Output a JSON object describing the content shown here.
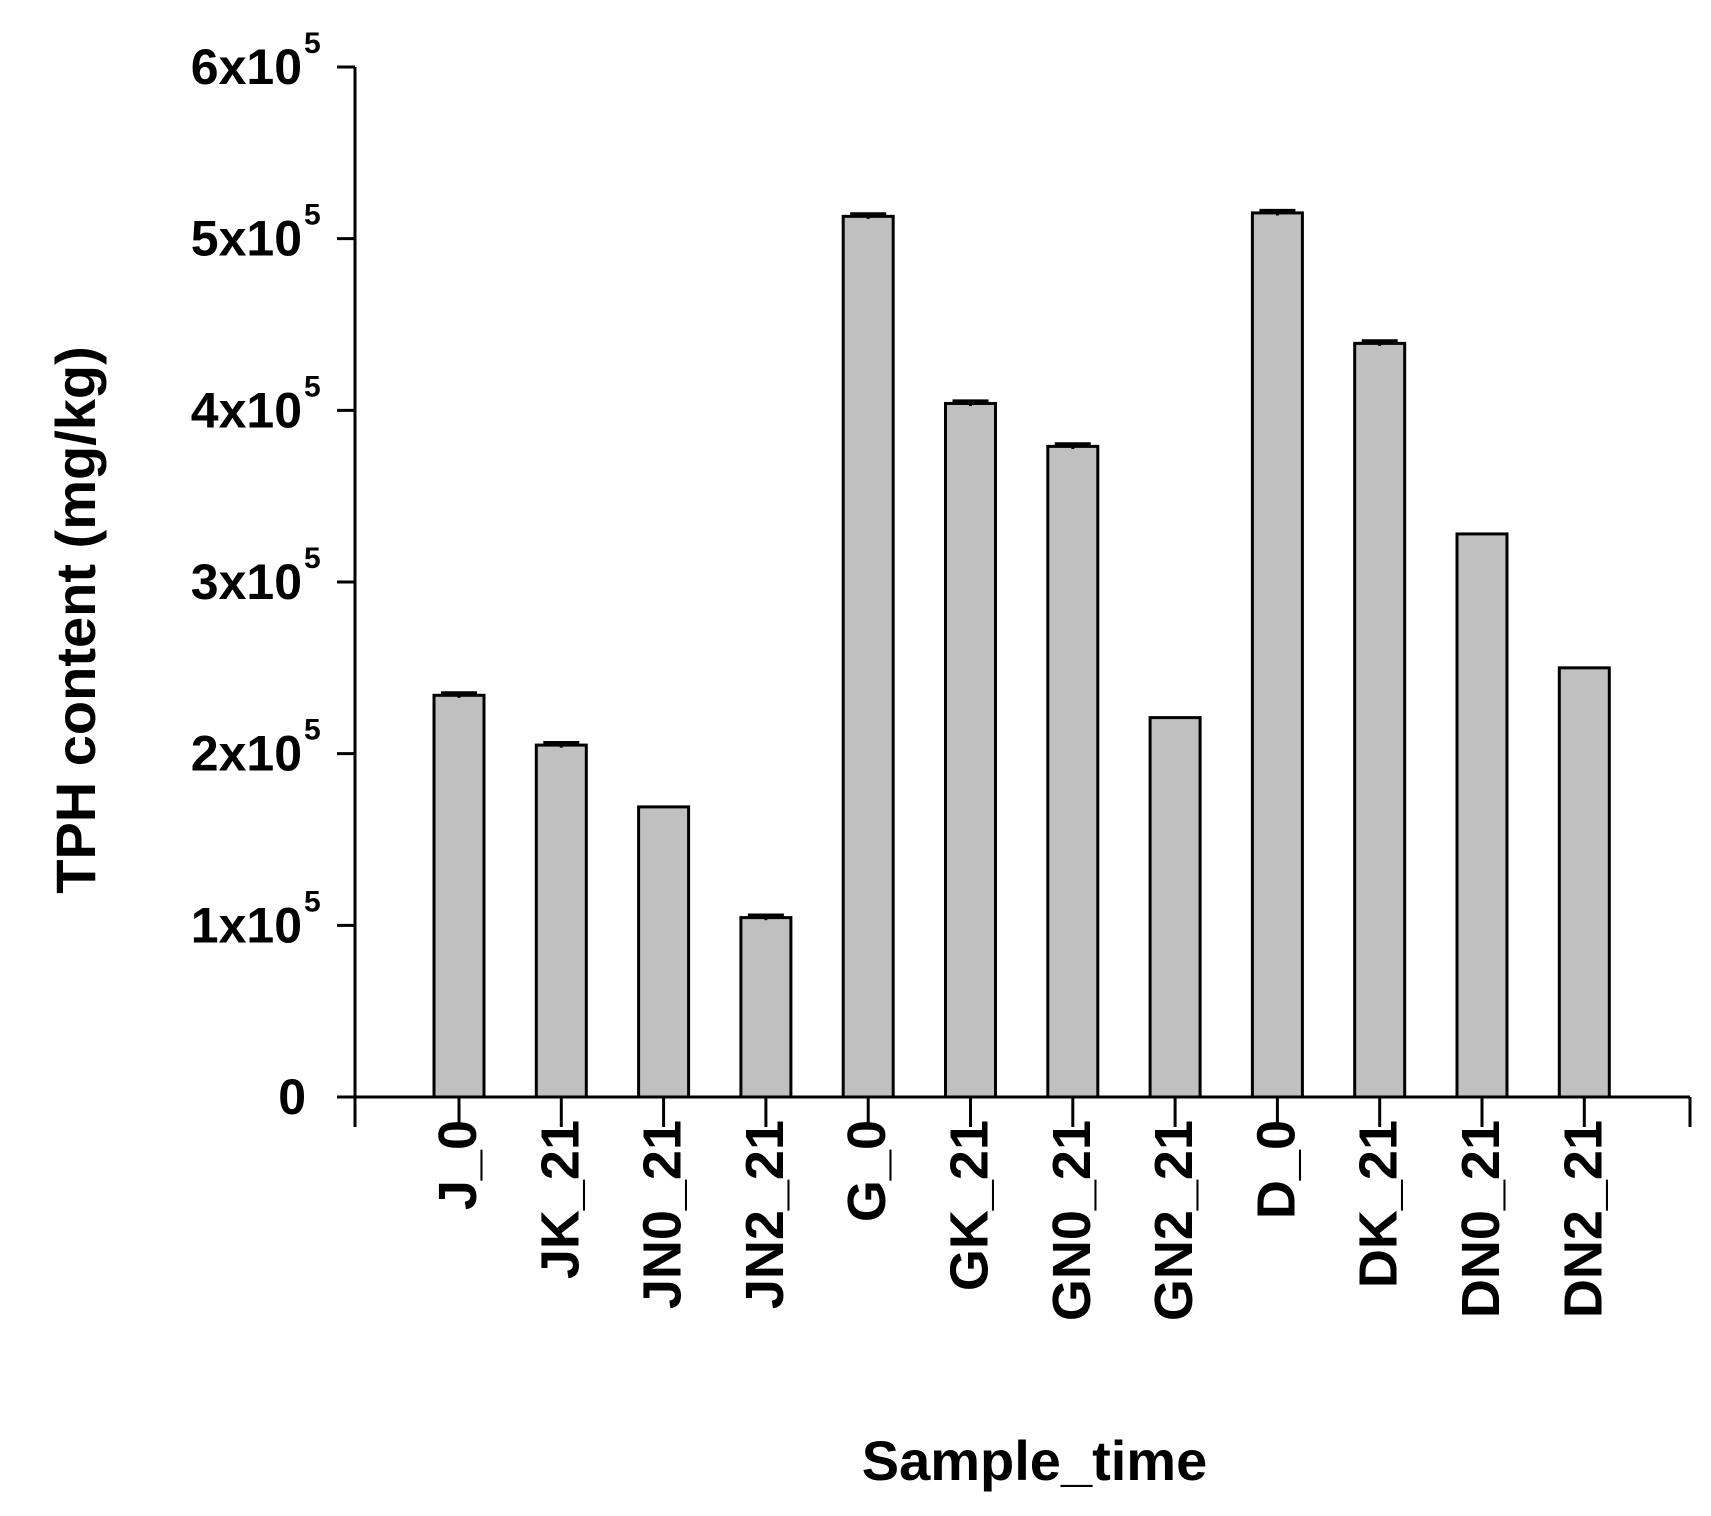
{
  "chart_data": {
    "type": "bar",
    "categories": [
      "J_0",
      "JK_21",
      "JN0_21",
      "JN2_21",
      "G_0",
      "GK_21",
      "GN0_21",
      "GN2_21",
      "D_0",
      "DK_21",
      "DN0_21",
      "DN2_21"
    ],
    "values": [
      234000,
      205000,
      169000,
      104500,
      513000,
      404000,
      379000,
      221000,
      515000,
      439000,
      328000,
      250000
    ],
    "errors": [
      1500,
      1500,
      0,
      1500,
      1500,
      1500,
      1500,
      0,
      1500,
      1500,
      0,
      0
    ],
    "title": "",
    "xlabel": "Sample_time",
    "ylabel": "TPH content (mg/kg)",
    "ylim": [
      0,
      600000
    ],
    "yticks": [
      {
        "value": 0,
        "label": "0",
        "exp": ""
      },
      {
        "value": 100000,
        "label": "1x10",
        "exp": "5"
      },
      {
        "value": 200000,
        "label": "2x10",
        "exp": "5"
      },
      {
        "value": 300000,
        "label": "3x10",
        "exp": "5"
      },
      {
        "value": 400000,
        "label": "4x10",
        "exp": "5"
      },
      {
        "value": 500000,
        "label": "5x10",
        "exp": "5"
      },
      {
        "value": 600000,
        "label": "6x10",
        "exp": "5"
      }
    ],
    "grid": false,
    "bar_color": "#c0c0c0",
    "edge_color": "#000000"
  }
}
